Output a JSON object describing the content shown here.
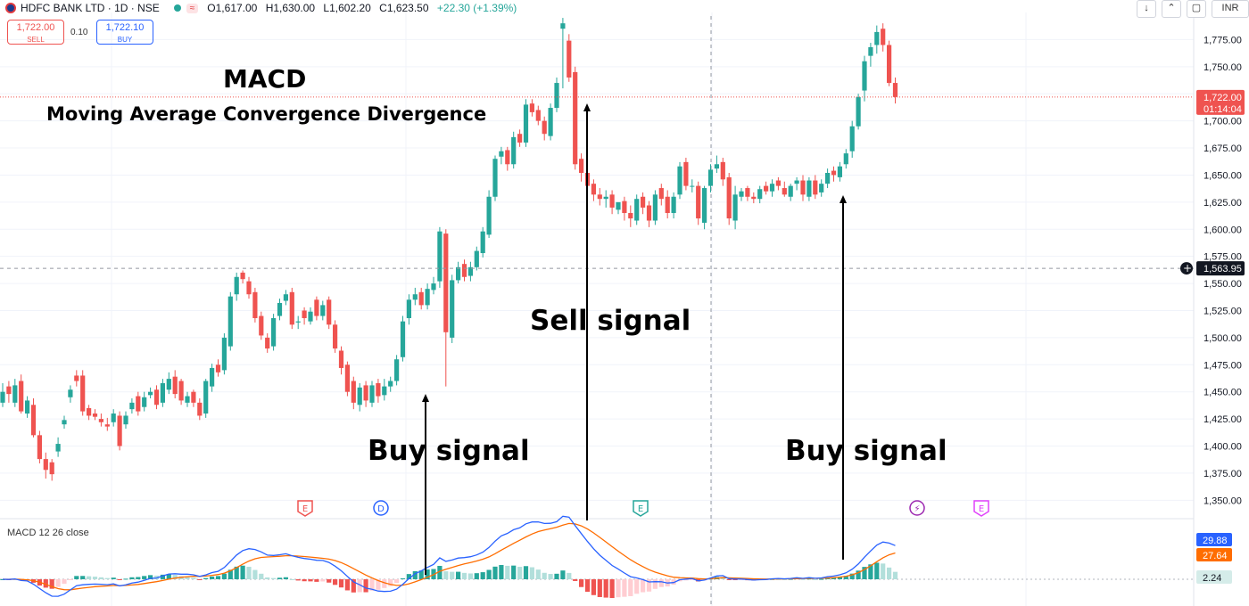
{
  "header": {
    "symbol": "HDFC BANK LTD · 1D · NSE",
    "ohlc": {
      "o": "O1,617.00",
      "h": "H1,630.00",
      "l": "L1,602.20",
      "c": "C1,623.50",
      "chg": "+22.30 (+1.39%)"
    },
    "sell_price": "1,722.00",
    "sell_label": "SELL",
    "spread": "0.10",
    "buy_price": "1,722.10",
    "buy_label": "BUY",
    "currency": "INR"
  },
  "annotations": {
    "title": "MACD",
    "subtitle": "Moving Average Convergence Divergence",
    "buy1": "Buy signal",
    "sell": "Sell signal",
    "buy2": "Buy signal"
  },
  "macd_label": "MACD 12 26 close",
  "colors": {
    "up": "#26a69a",
    "down": "#ef5350",
    "macd": "#2962ff",
    "signal": "#ff6d00"
  },
  "chart_data": [
    {
      "type": "candlestick",
      "ylim": [
        1333,
        1800
      ],
      "yticks": [
        1350,
        1375,
        1400,
        1425,
        1450,
        1475,
        1500,
        1525,
        1550,
        1575,
        1600,
        1625,
        1650,
        1675,
        1700,
        1725,
        1750,
        1775
      ],
      "ytick_labels": [
        "1,350.00",
        "1,375.00",
        "1,400.00",
        "1,425.00",
        "1,450.00",
        "1,475.00",
        "1,500.00",
        "1,525.00",
        "1,550.00",
        "1,575.00",
        "1,600.00",
        "1,625.00",
        "1,650.00",
        "1,675.00",
        "1,700.00",
        "1,725.00",
        "1,750.00",
        "1,775.00"
      ],
      "last_price": 1722.0,
      "last_price_label": "1,722.00",
      "countdown": "01:14:04",
      "crosshair_price": 1563.95,
      "crosshair_label": "1,563.95",
      "event_markers": [
        "E",
        "D",
        "E",
        "⚡",
        "E"
      ],
      "closes": [
        1450,
        1448,
        1456,
        1432,
        1442,
        1410,
        1388,
        1378,
        1374,
        1402,
        1424,
        1452,
        1460,
        1432,
        1428,
        1427,
        1422,
        1418,
        1430,
        1400,
        1428,
        1440,
        1432,
        1445,
        1450,
        1438,
        1458,
        1462,
        1448,
        1442,
        1446,
        1440,
        1428,
        1460,
        1472,
        1468,
        1500,
        1538,
        1556,
        1554,
        1540,
        1518,
        1502,
        1490,
        1518,
        1532,
        1540,
        1512,
        1515,
        1518,
        1524,
        1520,
        1530,
        1512,
        1490,
        1472,
        1450,
        1440,
        1454,
        1442,
        1456,
        1446,
        1455,
        1460,
        1480,
        1515,
        1535,
        1540,
        1530,
        1545,
        1550,
        1598,
        1505,
        1553,
        1565,
        1556,
        1565,
        1580,
        1598,
        1630,
        1665,
        1672,
        1660,
        1685,
        1680,
        1715,
        1708,
        1700,
        1688,
        1712,
        1735,
        1790,
        1740,
        1660,
        1652,
        1640,
        1632,
        1628,
        1630,
        1620,
        1625,
        1615,
        1610,
        1628,
        1620,
        1608,
        1632,
        1628,
        1615,
        1630,
        1658,
        1640,
        1640,
        1610,
        1638,
        1655,
        1660,
        1646,
        1610,
        1632,
        1635,
        1630,
        1628,
        1637,
        1635,
        1642,
        1640,
        1632,
        1640,
        1645,
        1632,
        1645,
        1632,
        1642,
        1652,
        1650,
        1658,
        1670,
        1695,
        1722,
        1755,
        1768,
        1782,
        1770,
        1735,
        1722
      ],
      "opens": [
        1440,
        1455,
        1440,
        1460,
        1430,
        1438,
        1410,
        1388,
        1385,
        1395,
        1420,
        1445,
        1465,
        1465,
        1435,
        1430,
        1425,
        1420,
        1422,
        1428,
        1420,
        1434,
        1446,
        1436,
        1447,
        1452,
        1440,
        1452,
        1464,
        1460,
        1440,
        1450,
        1440,
        1430,
        1455,
        1475,
        1470,
        1492,
        1540,
        1560,
        1552,
        1542,
        1520,
        1500,
        1492,
        1520,
        1534,
        1542,
        1514,
        1525,
        1515,
        1535,
        1520,
        1535,
        1512,
        1488,
        1475,
        1460,
        1438,
        1456,
        1440,
        1458,
        1447,
        1455,
        1460,
        1482,
        1518,
        1535,
        1542,
        1530,
        1544,
        1552,
        1596,
        1500,
        1553,
        1568,
        1557,
        1565,
        1578,
        1595,
        1630,
        1667,
        1673,
        1660,
        1688,
        1680,
        1716,
        1710,
        1700,
        1686,
        1712,
        1785,
        1774,
        1745,
        1665,
        1652,
        1642,
        1632,
        1628,
        1632,
        1618,
        1626,
        1615,
        1608,
        1630,
        1622,
        1608,
        1638,
        1630,
        1615,
        1632,
        1662,
        1640,
        1640,
        1606,
        1640,
        1656,
        1662,
        1648,
        1608,
        1630,
        1638,
        1630,
        1628,
        1640,
        1635,
        1645,
        1638,
        1630,
        1642,
        1645,
        1630,
        1645,
        1634,
        1642,
        1654,
        1648,
        1660,
        1672,
        1695,
        1728,
        1760,
        1770,
        1785,
        1770,
        1735
      ],
      "highs": [
        1458,
        1460,
        1462,
        1466,
        1446,
        1444,
        1414,
        1394,
        1388,
        1408,
        1428,
        1456,
        1470,
        1470,
        1438,
        1434,
        1430,
        1426,
        1434,
        1432,
        1432,
        1444,
        1450,
        1450,
        1454,
        1456,
        1462,
        1468,
        1470,
        1462,
        1450,
        1452,
        1444,
        1462,
        1476,
        1480,
        1504,
        1542,
        1560,
        1562,
        1556,
        1546,
        1524,
        1504,
        1522,
        1536,
        1544,
        1546,
        1520,
        1528,
        1528,
        1538,
        1534,
        1538,
        1516,
        1492,
        1478,
        1464,
        1458,
        1460,
        1460,
        1462,
        1462,
        1464,
        1484,
        1520,
        1540,
        1546,
        1546,
        1550,
        1556,
        1602,
        1600,
        1558,
        1570,
        1572,
        1570,
        1584,
        1602,
        1636,
        1668,
        1676,
        1676,
        1690,
        1692,
        1720,
        1720,
        1714,
        1704,
        1716,
        1740,
        1795,
        1780,
        1750,
        1670,
        1658,
        1646,
        1638,
        1636,
        1636,
        1624,
        1630,
        1622,
        1632,
        1634,
        1626,
        1636,
        1642,
        1636,
        1634,
        1662,
        1666,
        1646,
        1644,
        1640,
        1660,
        1668,
        1666,
        1652,
        1640,
        1638,
        1640,
        1634,
        1640,
        1644,
        1646,
        1648,
        1644,
        1642,
        1648,
        1650,
        1648,
        1650,
        1646,
        1656,
        1658,
        1662,
        1674,
        1700,
        1725,
        1760,
        1772,
        1788,
        1790,
        1774,
        1740
      ],
      "lows": [
        1436,
        1440,
        1436,
        1430,
        1426,
        1408,
        1384,
        1370,
        1368,
        1390,
        1416,
        1440,
        1455,
        1428,
        1424,
        1424,
        1418,
        1414,
        1418,
        1396,
        1416,
        1430,
        1428,
        1432,
        1444,
        1434,
        1436,
        1448,
        1444,
        1438,
        1436,
        1436,
        1424,
        1426,
        1450,
        1464,
        1466,
        1488,
        1534,
        1550,
        1536,
        1514,
        1498,
        1486,
        1488,
        1516,
        1530,
        1508,
        1508,
        1512,
        1512,
        1516,
        1516,
        1508,
        1486,
        1466,
        1446,
        1434,
        1432,
        1436,
        1436,
        1440,
        1442,
        1450,
        1456,
        1478,
        1512,
        1530,
        1526,
        1526,
        1540,
        1546,
        1455,
        1495,
        1550,
        1552,
        1552,
        1562,
        1574,
        1592,
        1626,
        1660,
        1654,
        1656,
        1676,
        1676,
        1704,
        1696,
        1682,
        1682,
        1708,
        1730,
        1736,
        1655,
        1644,
        1634,
        1626,
        1622,
        1620,
        1614,
        1614,
        1608,
        1602,
        1604,
        1614,
        1602,
        1604,
        1622,
        1610,
        1610,
        1628,
        1636,
        1634,
        1604,
        1600,
        1634,
        1652,
        1640,
        1604,
        1600,
        1626,
        1626,
        1624,
        1624,
        1632,
        1630,
        1636,
        1630,
        1626,
        1636,
        1626,
        1626,
        1628,
        1630,
        1638,
        1644,
        1644,
        1656,
        1666,
        1692,
        1718,
        1750,
        1762,
        1764,
        1732,
        1716
      ]
    },
    {
      "type": "macd",
      "name": "MACD 12 26 close",
      "macd_value": "29.88",
      "signal_value": "27.64",
      "hist_value": "2.24",
      "description": "MACD line (blue), signal line (orange), histogram (green/red)"
    }
  ]
}
